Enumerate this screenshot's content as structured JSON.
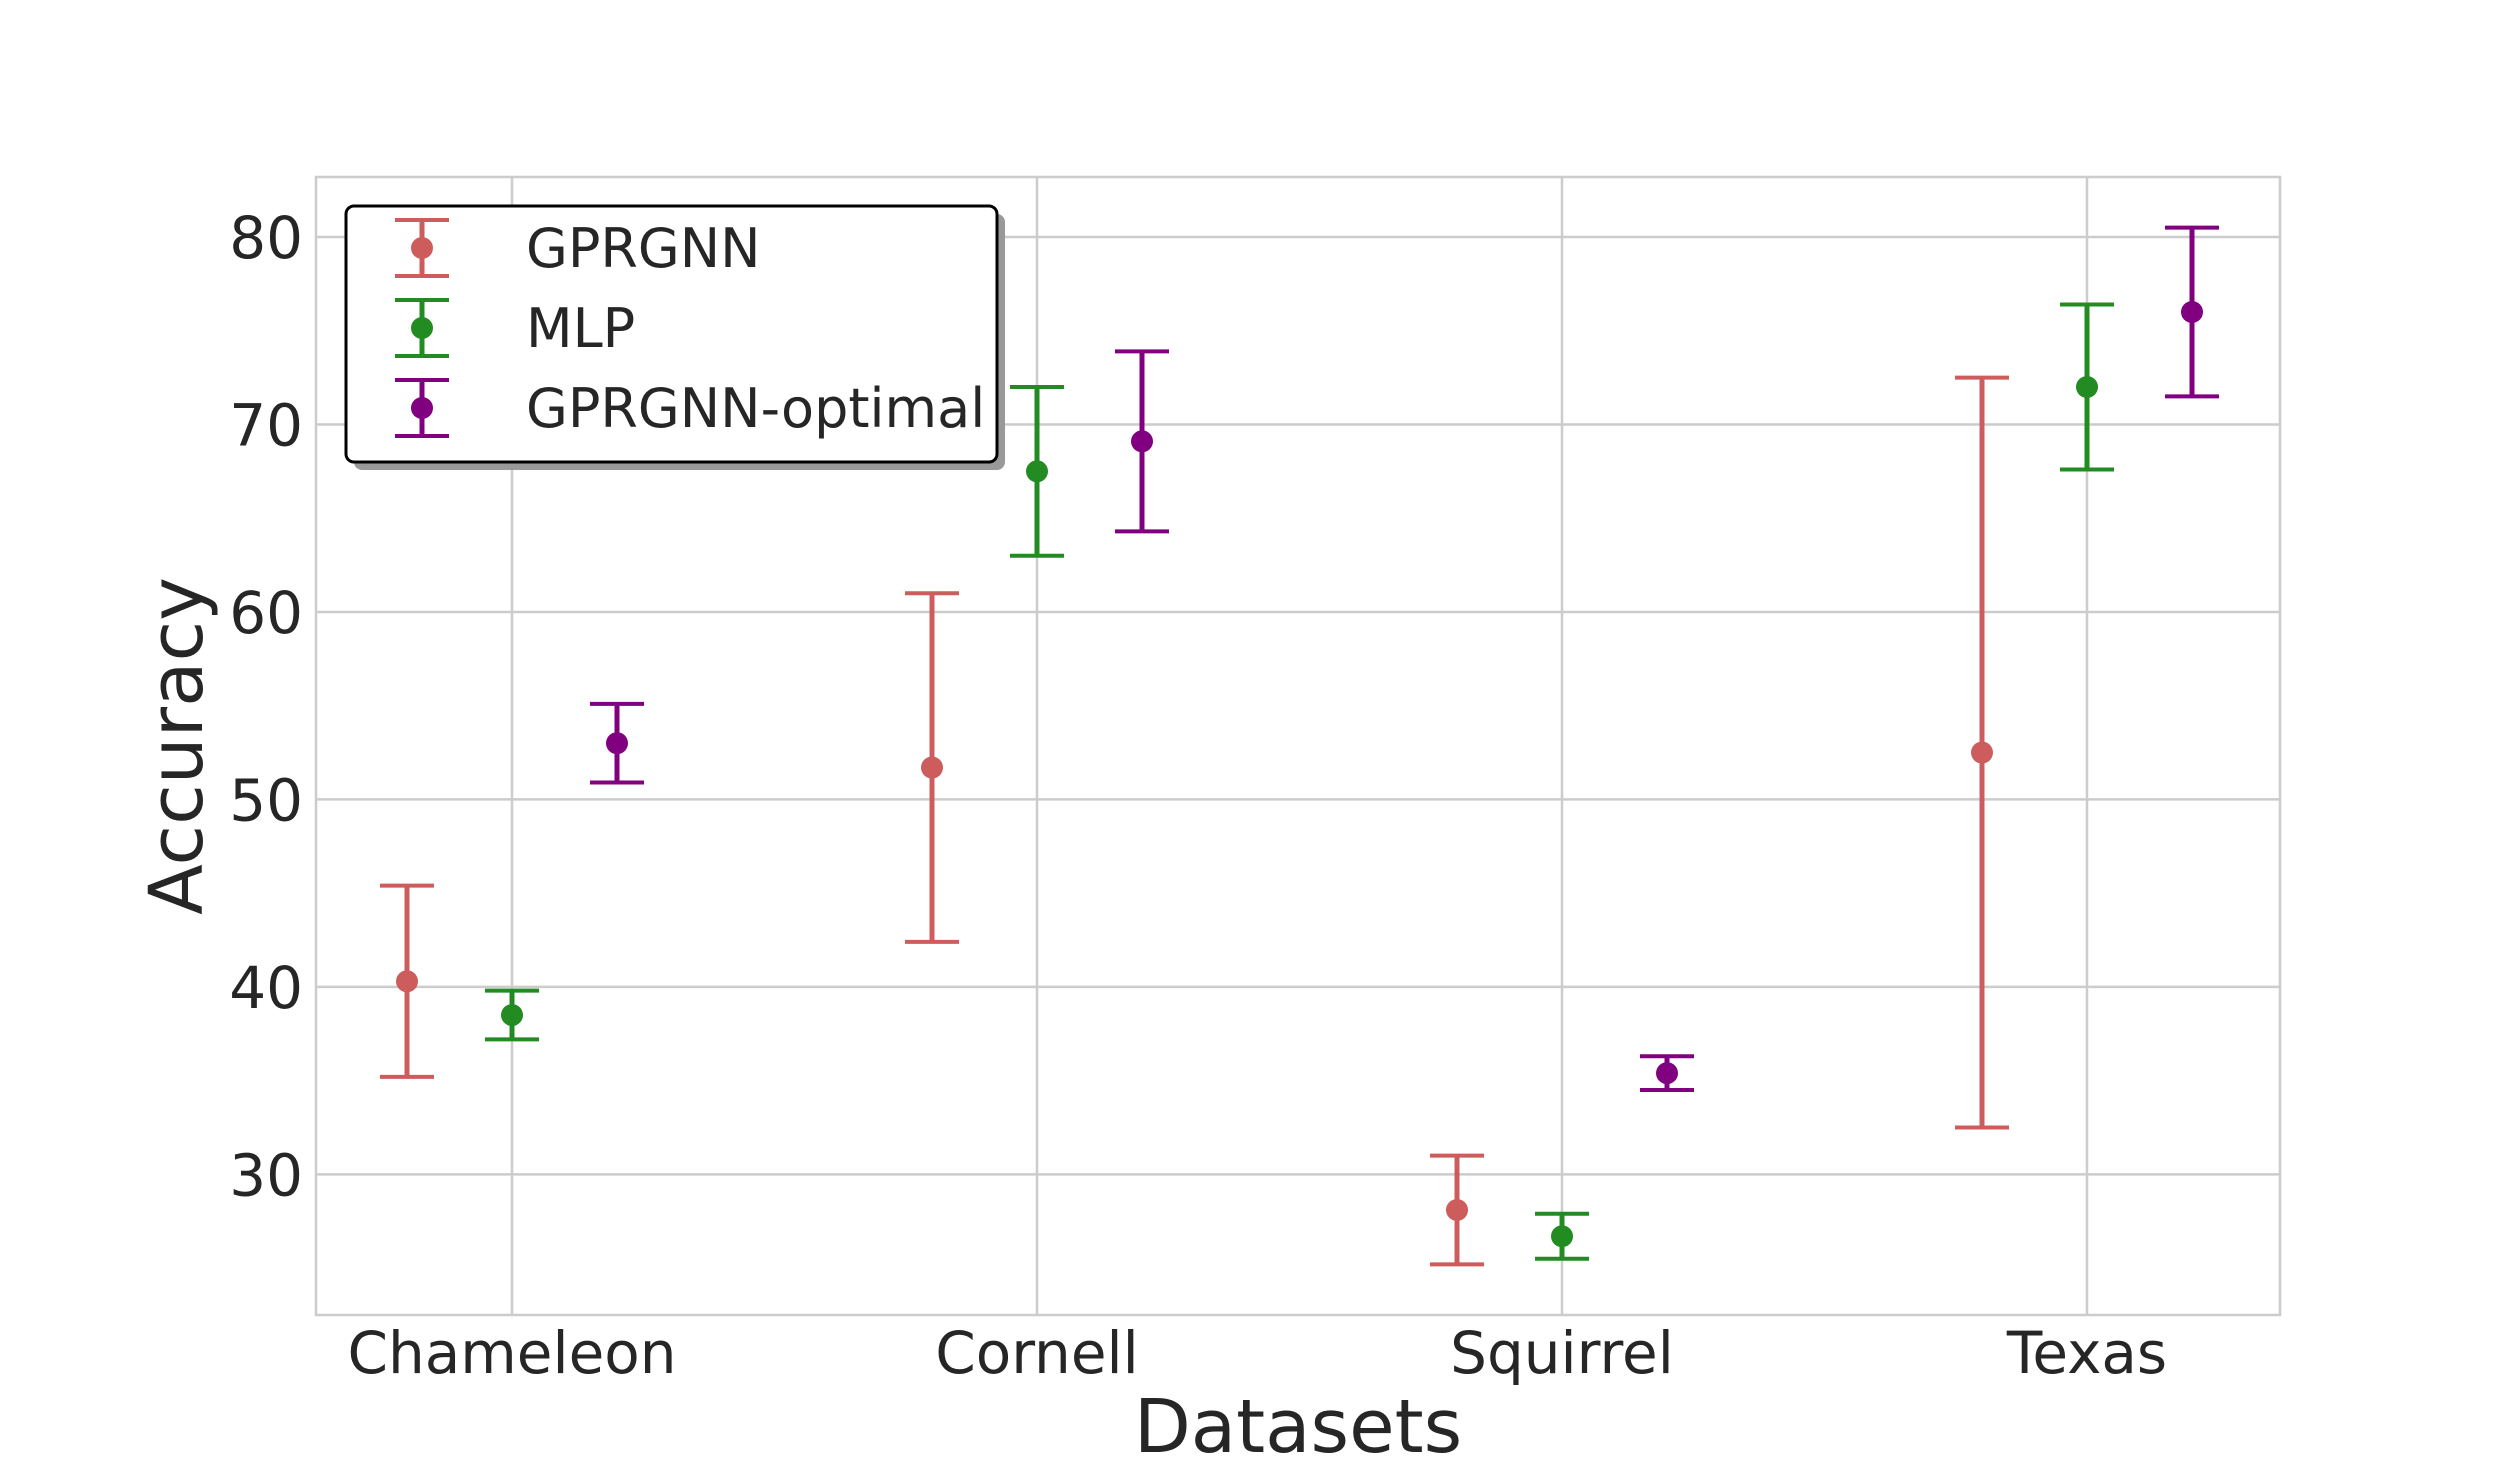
{
  "chart_data": {
    "type": "errorbar",
    "title": "",
    "xlabel": "Datasets",
    "ylabel": "Accuracy",
    "categories": [
      "Chameleon",
      "Cornell",
      "Squirrel",
      "Texas"
    ],
    "ylim": [
      22.5,
      83.2
    ],
    "yticks": [
      "30",
      "40",
      "50",
      "60",
      "70",
      "80"
    ],
    "grid": true,
    "legend_position": "top-left",
    "series": [
      {
        "name": "GPRGNN",
        "color": "#cd5c5c",
        "values": [
          40.3,
          51.7,
          28.1,
          52.5
        ],
        "errors": [
          5.1,
          9.3,
          2.9,
          20.0
        ]
      },
      {
        "name": "MLP",
        "color": "#228b22",
        "values": [
          38.5,
          67.5,
          26.7,
          72.0
        ],
        "errors": [
          1.3,
          4.5,
          1.2,
          4.4
        ]
      },
      {
        "name": "GPRGNN-optimal",
        "color": "#800080",
        "values": [
          53.0,
          69.1,
          35.4,
          76.0
        ],
        "errors": [
          2.1,
          4.8,
          0.9,
          4.5
        ]
      }
    ]
  }
}
